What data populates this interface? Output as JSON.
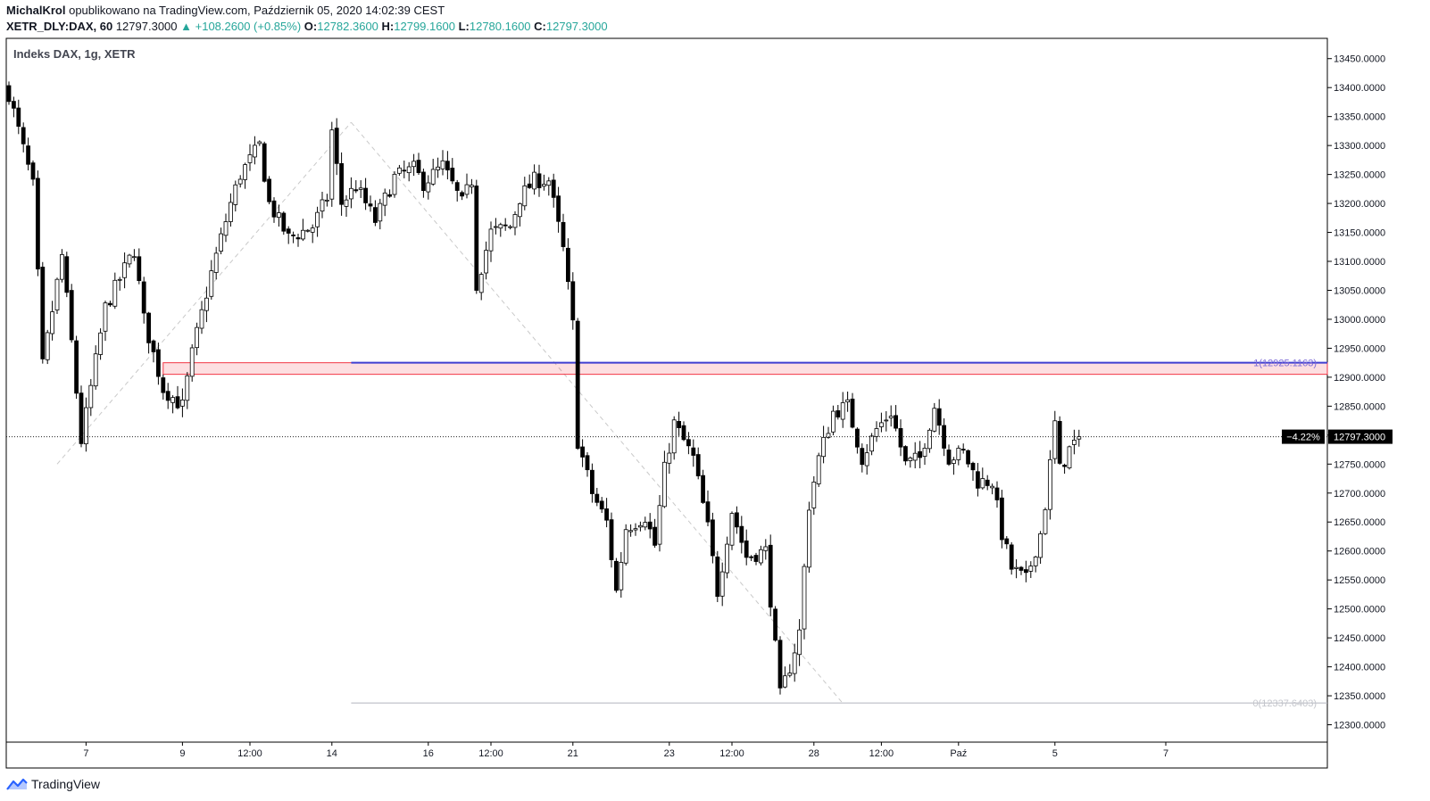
{
  "header": {
    "author": "MichalKrol",
    "published_text": "opublikowano na TradingView.com, Październik 05, 2020 14:02:39 CEST",
    "symbol": "XETR_DLY:DAX, 60",
    "last": "12797.3000",
    "change": "▲ +108.2600 (+0.85%)",
    "o_label": "O:",
    "o_value": "12782.3600",
    "h_label": "H:",
    "h_value": "12799.1600",
    "l_label": "L:",
    "l_value": "12780.1600",
    "c_label": "C:",
    "c_value": "12797.3000"
  },
  "footer": {
    "brand": "TradingView"
  },
  "colors": {
    "accent": "#2962ff",
    "zone": "#f23645",
    "fib": "#787b86",
    "up": "#26a69a"
  },
  "chart_data": {
    "type": "candlestick",
    "title": "Indeks DAX, 1g, XETR",
    "ylim": [
      12270,
      13485
    ],
    "y_ticks": [
      13450,
      13400,
      13350,
      13300,
      13250,
      13200,
      13150,
      13100,
      13050,
      13000,
      12950,
      12900,
      12850,
      12800,
      12750,
      12700,
      12650,
      12600,
      12550,
      12500,
      12450,
      12400,
      12350,
      12300
    ],
    "y_tick_labels": [
      "13450.0000",
      "13400.0000",
      "13350.0000",
      "13300.0000",
      "13250.0000",
      "13200.0000",
      "13150.0000",
      "13100.0000",
      "13050.0000",
      "13000.0000",
      "12950.0000",
      "12900.0000",
      "12850.0000",
      "12800.0000",
      "12750.0000",
      "12700.0000",
      "12650.0000",
      "12600.0000",
      "12550.0000",
      "12500.0000",
      "12450.0000",
      "12400.0000",
      "12350.0000",
      "12300.0000"
    ],
    "x_bar_count": 240,
    "x_ticks": [
      {
        "bar": 16,
        "label": "7"
      },
      {
        "bar": 36,
        "label": "9"
      },
      {
        "bar": 50,
        "label": "12:00"
      },
      {
        "bar": 67,
        "label": "14"
      },
      {
        "bar": 87,
        "label": "16"
      },
      {
        "bar": 100,
        "label": "12:00"
      },
      {
        "bar": 117,
        "label": "21"
      },
      {
        "bar": 137,
        "label": "23"
      },
      {
        "bar": 150,
        "label": "12:00"
      },
      {
        "bar": 167,
        "label": "28"
      },
      {
        "bar": 181,
        "label": "12:00"
      },
      {
        "bar": 197,
        "label": "Paź"
      },
      {
        "bar": 217,
        "label": "5"
      },
      {
        "bar": 240,
        "label": "7"
      }
    ],
    "anchors": [
      {
        "bar": 0,
        "price": 13390
      },
      {
        "bar": 5,
        "price": 13230
      },
      {
        "bar": 7,
        "price": 12920
      },
      {
        "bar": 11,
        "price": 13110
      },
      {
        "bar": 13,
        "price": 12960
      },
      {
        "bar": 15,
        "price": 12790
      },
      {
        "bar": 20,
        "price": 13020
      },
      {
        "bar": 26,
        "price": 13120
      },
      {
        "bar": 28,
        "price": 13000
      },
      {
        "bar": 32,
        "price": 12880
      },
      {
        "bar": 36,
        "price": 12850
      },
      {
        "bar": 38,
        "price": 12940
      },
      {
        "bar": 42,
        "price": 13080
      },
      {
        "bar": 46,
        "price": 13200
      },
      {
        "bar": 48,
        "price": 13250
      },
      {
        "bar": 52,
        "price": 13300
      },
      {
        "bar": 54,
        "price": 13200
      },
      {
        "bar": 58,
        "price": 13140
      },
      {
        "bar": 63,
        "price": 13160
      },
      {
        "bar": 66,
        "price": 13210
      },
      {
        "bar": 67,
        "price": 13325
      },
      {
        "bar": 69,
        "price": 13200
      },
      {
        "bar": 72,
        "price": 13230
      },
      {
        "bar": 76,
        "price": 13170
      },
      {
        "bar": 80,
        "price": 13245
      },
      {
        "bar": 84,
        "price": 13260
      },
      {
        "bar": 86,
        "price": 13235
      },
      {
        "bar": 90,
        "price": 13265
      },
      {
        "bar": 94,
        "price": 13200
      },
      {
        "bar": 96,
        "price": 13240
      },
      {
        "bar": 97,
        "price": 13060
      },
      {
        "bar": 100,
        "price": 13150
      },
      {
        "bar": 104,
        "price": 13160
      },
      {
        "bar": 106,
        "price": 13210
      },
      {
        "bar": 109,
        "price": 13240
      },
      {
        "bar": 112,
        "price": 13240
      },
      {
        "bar": 115,
        "price": 13120
      },
      {
        "bar": 117,
        "price": 12990
      },
      {
        "bar": 118,
        "price": 12790
      },
      {
        "bar": 121,
        "price": 12700
      },
      {
        "bar": 124,
        "price": 12650
      },
      {
        "bar": 126,
        "price": 12530
      },
      {
        "bar": 128,
        "price": 12640
      },
      {
        "bar": 132,
        "price": 12660
      },
      {
        "bar": 134,
        "price": 12610
      },
      {
        "bar": 136,
        "price": 12740
      },
      {
        "bar": 138,
        "price": 12820
      },
      {
        "bar": 142,
        "price": 12760
      },
      {
        "bar": 145,
        "price": 12640
      },
      {
        "bar": 147,
        "price": 12530
      },
      {
        "bar": 150,
        "price": 12670
      },
      {
        "bar": 153,
        "price": 12590
      },
      {
        "bar": 157,
        "price": 12600
      },
      {
        "bar": 160,
        "price": 12350
      },
      {
        "bar": 162,
        "price": 12400
      },
      {
        "bar": 164,
        "price": 12460
      },
      {
        "bar": 166,
        "price": 12680
      },
      {
        "bar": 168,
        "price": 12760
      },
      {
        "bar": 171,
        "price": 12840
      },
      {
        "bar": 174,
        "price": 12850
      },
      {
        "bar": 177,
        "price": 12760
      },
      {
        "bar": 180,
        "price": 12810
      },
      {
        "bar": 183,
        "price": 12840
      },
      {
        "bar": 186,
        "price": 12750
      },
      {
        "bar": 189,
        "price": 12760
      },
      {
        "bar": 192,
        "price": 12850
      },
      {
        "bar": 195,
        "price": 12760
      },
      {
        "bar": 198,
        "price": 12770
      },
      {
        "bar": 201,
        "price": 12720
      },
      {
        "bar": 204,
        "price": 12720
      },
      {
        "bar": 206,
        "price": 12630
      },
      {
        "bar": 208,
        "price": 12570
      },
      {
        "bar": 211,
        "price": 12550
      },
      {
        "bar": 214,
        "price": 12630
      },
      {
        "bar": 215,
        "price": 12680
      },
      {
        "bar": 217,
        "price": 12820
      },
      {
        "bar": 218,
        "price": 12740
      },
      {
        "bar": 220,
        "price": 12775
      },
      {
        "bar": 222,
        "price": 12797
      }
    ],
    "resistance_zone": {
      "from_bar": 32,
      "top": 12925,
      "bottom": 12905
    },
    "fib": {
      "from_bar": 71,
      "to_bar": 172,
      "level_1_price": 12925.1163,
      "level_1_label": "1(12925.1163)",
      "level_0_price": 12337.6403,
      "level_0_label": "0(12337.6403)"
    },
    "fib_trendlines": [
      {
        "bar1": 10,
        "price1": 12750,
        "bar2": 71,
        "price2": 13340
      },
      {
        "bar1": 71,
        "price1": 13340,
        "bar2": 173,
        "price2": 12337
      }
    ],
    "last_price": 12797.3,
    "last_price_label": "12797.3000",
    "countdown_label": "−4.22%"
  }
}
